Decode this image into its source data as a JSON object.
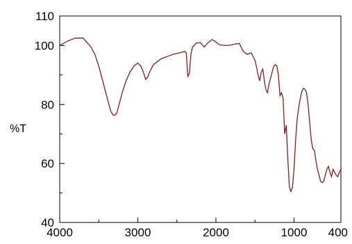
{
  "chart_data": {
    "type": "line",
    "title": "",
    "xlabel": "",
    "ylabel": "%T",
    "xlim": [
      4000,
      400
    ],
    "ylim": [
      40,
      110
    ],
    "x_ticks": [
      4000,
      3000,
      2000,
      1000,
      400
    ],
    "x_tick_labels": [
      "4000",
      "3000",
      "2000",
      "1000",
      "400"
    ],
    "y_ticks": [
      40,
      60,
      80,
      100,
      110
    ],
    "y_tick_labels": [
      "40",
      "60",
      "80",
      "100",
      "110"
    ],
    "grid": false,
    "series": [
      {
        "color": "#8b1a1a",
        "x": [
          4000,
          3900,
          3800,
          3750,
          3700,
          3650,
          3600,
          3550,
          3500,
          3450,
          3400,
          3350,
          3320,
          3300,
          3270,
          3250,
          3200,
          3150,
          3100,
          3050,
          3000,
          2960,
          2930,
          2900,
          2870,
          2850,
          2820,
          2800,
          2750,
          2700,
          2650,
          2600,
          2550,
          2500,
          2450,
          2400,
          2380,
          2360,
          2340,
          2320,
          2300,
          2250,
          2200,
          2150,
          2100,
          2050,
          2000,
          1950,
          1900,
          1850,
          1800,
          1750,
          1700,
          1650,
          1600,
          1550,
          1500,
          1460,
          1440,
          1420,
          1400,
          1380,
          1360,
          1340,
          1320,
          1300,
          1280,
          1260,
          1240,
          1220,
          1200,
          1180,
          1160,
          1140,
          1120,
          1100,
          1080,
          1060,
          1040,
          1020,
          1000,
          980,
          960,
          940,
          920,
          900,
          880,
          860,
          840,
          820,
          800,
          780,
          760,
          740,
          720,
          700,
          680,
          660,
          640,
          620,
          600,
          580,
          560,
          540,
          520,
          500,
          480,
          460,
          440,
          420,
          400
        ],
        "y": [
          100,
          101.5,
          102.5,
          102.5,
          102.5,
          101,
          99.5,
          97,
          93,
          88,
          83,
          78,
          76.5,
          76.3,
          77,
          79,
          84,
          88,
          91,
          93,
          94,
          93,
          91,
          88.5,
          89.5,
          91,
          92.5,
          93.5,
          94.5,
          95.5,
          96,
          96.5,
          97,
          97.3,
          97.6,
          98,
          97.5,
          89.5,
          90.5,
          97,
          99.5,
          100.8,
          101,
          99.5,
          101,
          102,
          101.2,
          100.2,
          100.1,
          100,
          100.2,
          100.5,
          100.7,
          98,
          97,
          97.5,
          95,
          90,
          88,
          91,
          92,
          88,
          85,
          84,
          87,
          89,
          91,
          93,
          93.5,
          93,
          90,
          83,
          84,
          82,
          70,
          73,
          62,
          52,
          50.5,
          52,
          58,
          68,
          75,
          79,
          82,
          84.5,
          85.5,
          85.2,
          84,
          80,
          74,
          68,
          65,
          64.5,
          61,
          58,
          56,
          54,
          53.5,
          54,
          56,
          58,
          59,
          57,
          55.5,
          58,
          57,
          56,
          55.5,
          57,
          58
        ]
      }
    ]
  }
}
